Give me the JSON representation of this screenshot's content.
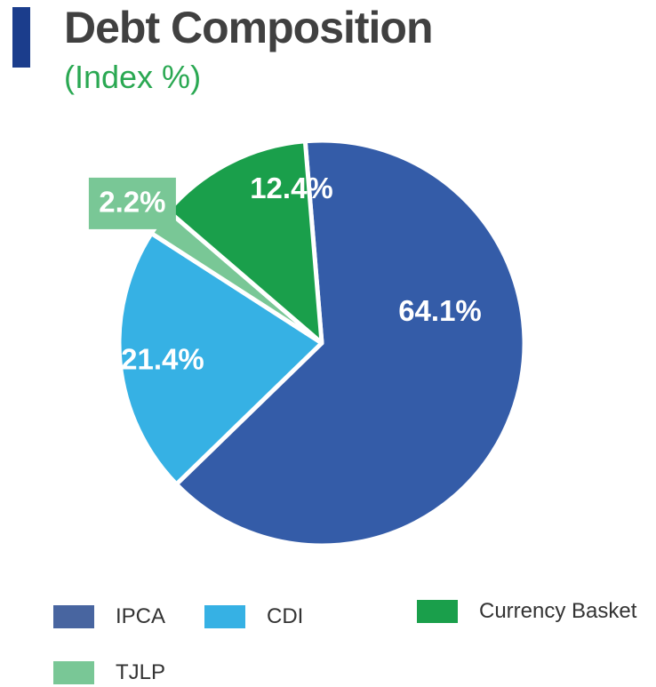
{
  "chart_data": {
    "type": "pie",
    "title": "Debt Composition",
    "subtitle": "(Index %)",
    "slices": [
      {
        "name": "IPCA",
        "value": 64.1,
        "label": "64.1%",
        "color": "#345ca8"
      },
      {
        "name": "CDI",
        "value": 21.4,
        "label": "21.4%",
        "color": "#36b1e4"
      },
      {
        "name": "TJLP",
        "value": 2.2,
        "label": "2.2%",
        "color": "#79c796"
      },
      {
        "name": "Currency Basket",
        "value": 12.4,
        "label": "12.4%",
        "color": "#1a9f4b"
      }
    ],
    "legend": [
      {
        "name": "IPCA",
        "color": "#4865a0"
      },
      {
        "name": "CDI",
        "color": "#36b1e4"
      },
      {
        "name": "Currency Basket",
        "color": "#1a9f4b"
      },
      {
        "name": "TJLP",
        "color": "#79c796"
      }
    ],
    "colors": {
      "accent_bar": "#1b3d8c",
      "title": "#404040",
      "subtitle": "#2aa852"
    }
  }
}
